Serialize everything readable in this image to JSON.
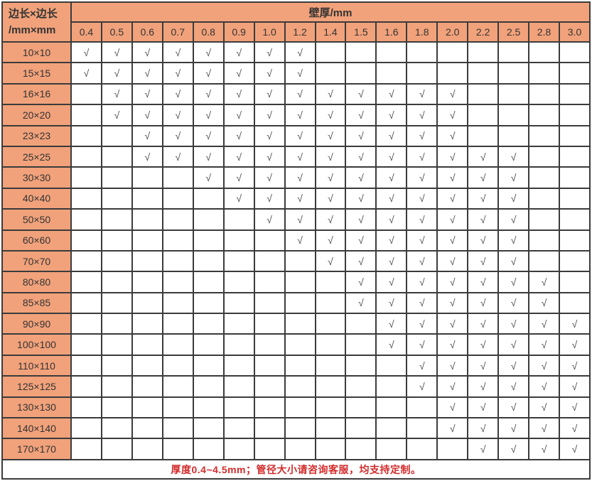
{
  "table": {
    "corner_header": {
      "line1": "边长×边长",
      "line2": "/mm×mm"
    },
    "thickness_header": "壁厚/mm",
    "columns": [
      "0.4",
      "0.5",
      "0.6",
      "0.7",
      "0.8",
      "0.9",
      "1.0",
      "1.2",
      "1.4",
      "1.5",
      "1.6",
      "1.8",
      "2.0",
      "2.2",
      "2.5",
      "2.8",
      "3.0"
    ],
    "check_mark": "√",
    "rows": [
      {
        "label": "10×10",
        "checked": [
          "0.4",
          "0.5",
          "0.6",
          "0.7",
          "0.8",
          "0.9",
          "1.0",
          "1.2"
        ]
      },
      {
        "label": "15×15",
        "checked": [
          "0.4",
          "0.5",
          "0.6",
          "0.7",
          "0.8",
          "0.9",
          "1.0",
          "1.2"
        ]
      },
      {
        "label": "16×16",
        "checked": [
          "0.5",
          "0.6",
          "0.7",
          "0.8",
          "0.9",
          "1.0",
          "1.2",
          "1.4",
          "1.5",
          "1.6",
          "1.8",
          "2.0"
        ]
      },
      {
        "label": "20×20",
        "checked": [
          "0.5",
          "0.6",
          "0.7",
          "0.8",
          "0.9",
          "1.0",
          "1.2",
          "1.4",
          "1.5",
          "1.6",
          "1.8",
          "2.0"
        ]
      },
      {
        "label": "23×23",
        "checked": [
          "0.6",
          "0.7",
          "0.8",
          "0.9",
          "1.0",
          "1.2",
          "1.4",
          "1.5",
          "1.6",
          "1.8",
          "2.0"
        ]
      },
      {
        "label": "25×25",
        "checked": [
          "0.6",
          "0.7",
          "0.8",
          "0.9",
          "1.0",
          "1.2",
          "1.4",
          "1.5",
          "1.6",
          "1.8",
          "2.0",
          "2.2",
          "2.5"
        ]
      },
      {
        "label": "30×30",
        "checked": [
          "0.8",
          "0.9",
          "1.0",
          "1.2",
          "1.4",
          "1.5",
          "1.6",
          "1.8",
          "2.0",
          "2.2",
          "2.5"
        ]
      },
      {
        "label": "40×40",
        "checked": [
          "0.9",
          "1.0",
          "1.2",
          "1.4",
          "1.5",
          "1.6",
          "1.8",
          "2.0",
          "2.2",
          "2.5"
        ]
      },
      {
        "label": "50×50",
        "checked": [
          "1.0",
          "1.2",
          "1.4",
          "1.5",
          "1.6",
          "1.8",
          "2.0",
          "2.2",
          "2.5"
        ]
      },
      {
        "label": "60×60",
        "checked": [
          "1.2",
          "1.4",
          "1.5",
          "1.6",
          "1.8",
          "2.0",
          "2.2",
          "2.5"
        ]
      },
      {
        "label": "70×70",
        "checked": [
          "1.4",
          "1.5",
          "1.6",
          "1.8",
          "2.0",
          "2.2",
          "2.5"
        ]
      },
      {
        "label": "80×80",
        "checked": [
          "1.5",
          "1.6",
          "1.8",
          "2.0",
          "2.2",
          "2.5",
          "2.8"
        ]
      },
      {
        "label": "85×85",
        "checked": [
          "1.5",
          "1.6",
          "1.8",
          "2.0",
          "2.2",
          "2.5",
          "2.8"
        ]
      },
      {
        "label": "90×90",
        "checked": [
          "1.6",
          "1.8",
          "2.0",
          "2.2",
          "2.5",
          "2.8",
          "3.0"
        ]
      },
      {
        "label": "100×100",
        "checked": [
          "1.6",
          "1.8",
          "2.0",
          "2.2",
          "2.5",
          "2.8",
          "3.0"
        ]
      },
      {
        "label": "110×110",
        "checked": [
          "1.8",
          "2.0",
          "2.2",
          "2.5",
          "2.8",
          "3.0"
        ]
      },
      {
        "label": "125×125",
        "checked": [
          "1.8",
          "2.0",
          "2.2",
          "2.5",
          "2.8",
          "3.0"
        ]
      },
      {
        "label": "130×130",
        "checked": [
          "2.0",
          "2.2",
          "2.5",
          "2.8",
          "3.0"
        ]
      },
      {
        "label": "140×140",
        "checked": [
          "2.0",
          "2.2",
          "2.5",
          "2.8",
          "3.0"
        ]
      },
      {
        "label": "170×170",
        "checked": [
          "2.2",
          "2.5",
          "2.8",
          "3.0"
        ]
      }
    ],
    "footer_note": "厚度0.4~4.5mm；管径大小请咨询客服，均支持定制。"
  },
  "colors": {
    "header_bg": "#f1a27b",
    "border": "#3b3b3b",
    "text": "#333333",
    "check": "#4a4a4a",
    "footer_text": "#d32b2b"
  }
}
